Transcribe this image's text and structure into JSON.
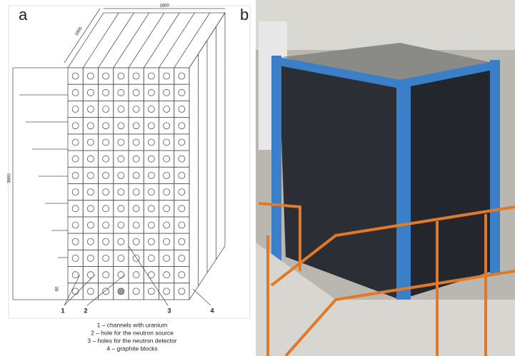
{
  "panels": {
    "a": "a",
    "b": "b"
  },
  "dimensions": {
    "top": "1800",
    "depth": "1800",
    "height": "3600",
    "base": "60"
  },
  "callouts": [
    "1",
    "2",
    "3",
    "4"
  ],
  "legend": [
    "1 – channels with uranium",
    "2 – hole for the neutron source",
    "3 – holes for the neutron detector",
    "4 – graphite blocks"
  ]
}
